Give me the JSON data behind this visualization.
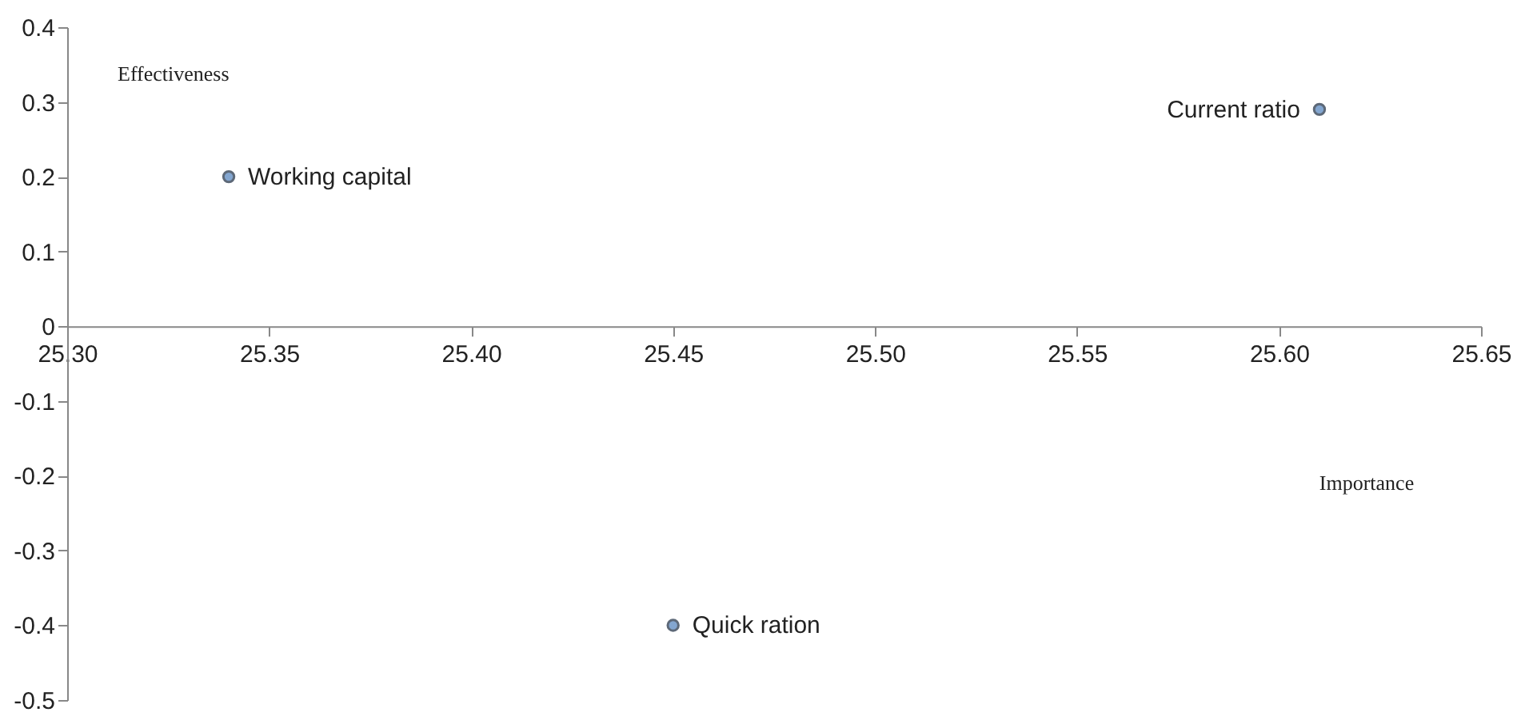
{
  "chart_data": {
    "type": "scatter",
    "xlabel": "Importance",
    "ylabel": "Effectiveness",
    "xlim": [
      25.3,
      25.65
    ],
    "xticks": [
      {
        "value": 25.3,
        "label": "25.30"
      },
      {
        "value": 25.35,
        "label": "25.35"
      },
      {
        "value": 25.4,
        "label": "25.40"
      },
      {
        "value": 25.45,
        "label": "25.45"
      },
      {
        "value": 25.5,
        "label": "25.50"
      },
      {
        "value": 25.55,
        "label": "25.55"
      },
      {
        "value": 25.6,
        "label": "25.60"
      },
      {
        "value": 25.65,
        "label": "25.65"
      }
    ],
    "ylim": [
      -0.5,
      0.4
    ],
    "yticks": [
      -0.5,
      -0.4,
      -0.3,
      -0.2,
      -0.1,
      0,
      0.1,
      0.2,
      0.3,
      0.4
    ],
    "grid": false,
    "legend": false,
    "marker": "circle",
    "series": [
      {
        "name": "Working capital",
        "color": "#4f81bd",
        "x": [
          25.34
        ],
        "values": [
          0.2
        ]
      },
      {
        "name": "Current ratio",
        "color": "#4f81bd",
        "x": [
          25.61
        ],
        "values": [
          0.29
        ]
      },
      {
        "name": "Quick ration",
        "color": "#4f81bd",
        "x": [
          25.45
        ],
        "values": [
          -0.4
        ]
      }
    ]
  }
}
